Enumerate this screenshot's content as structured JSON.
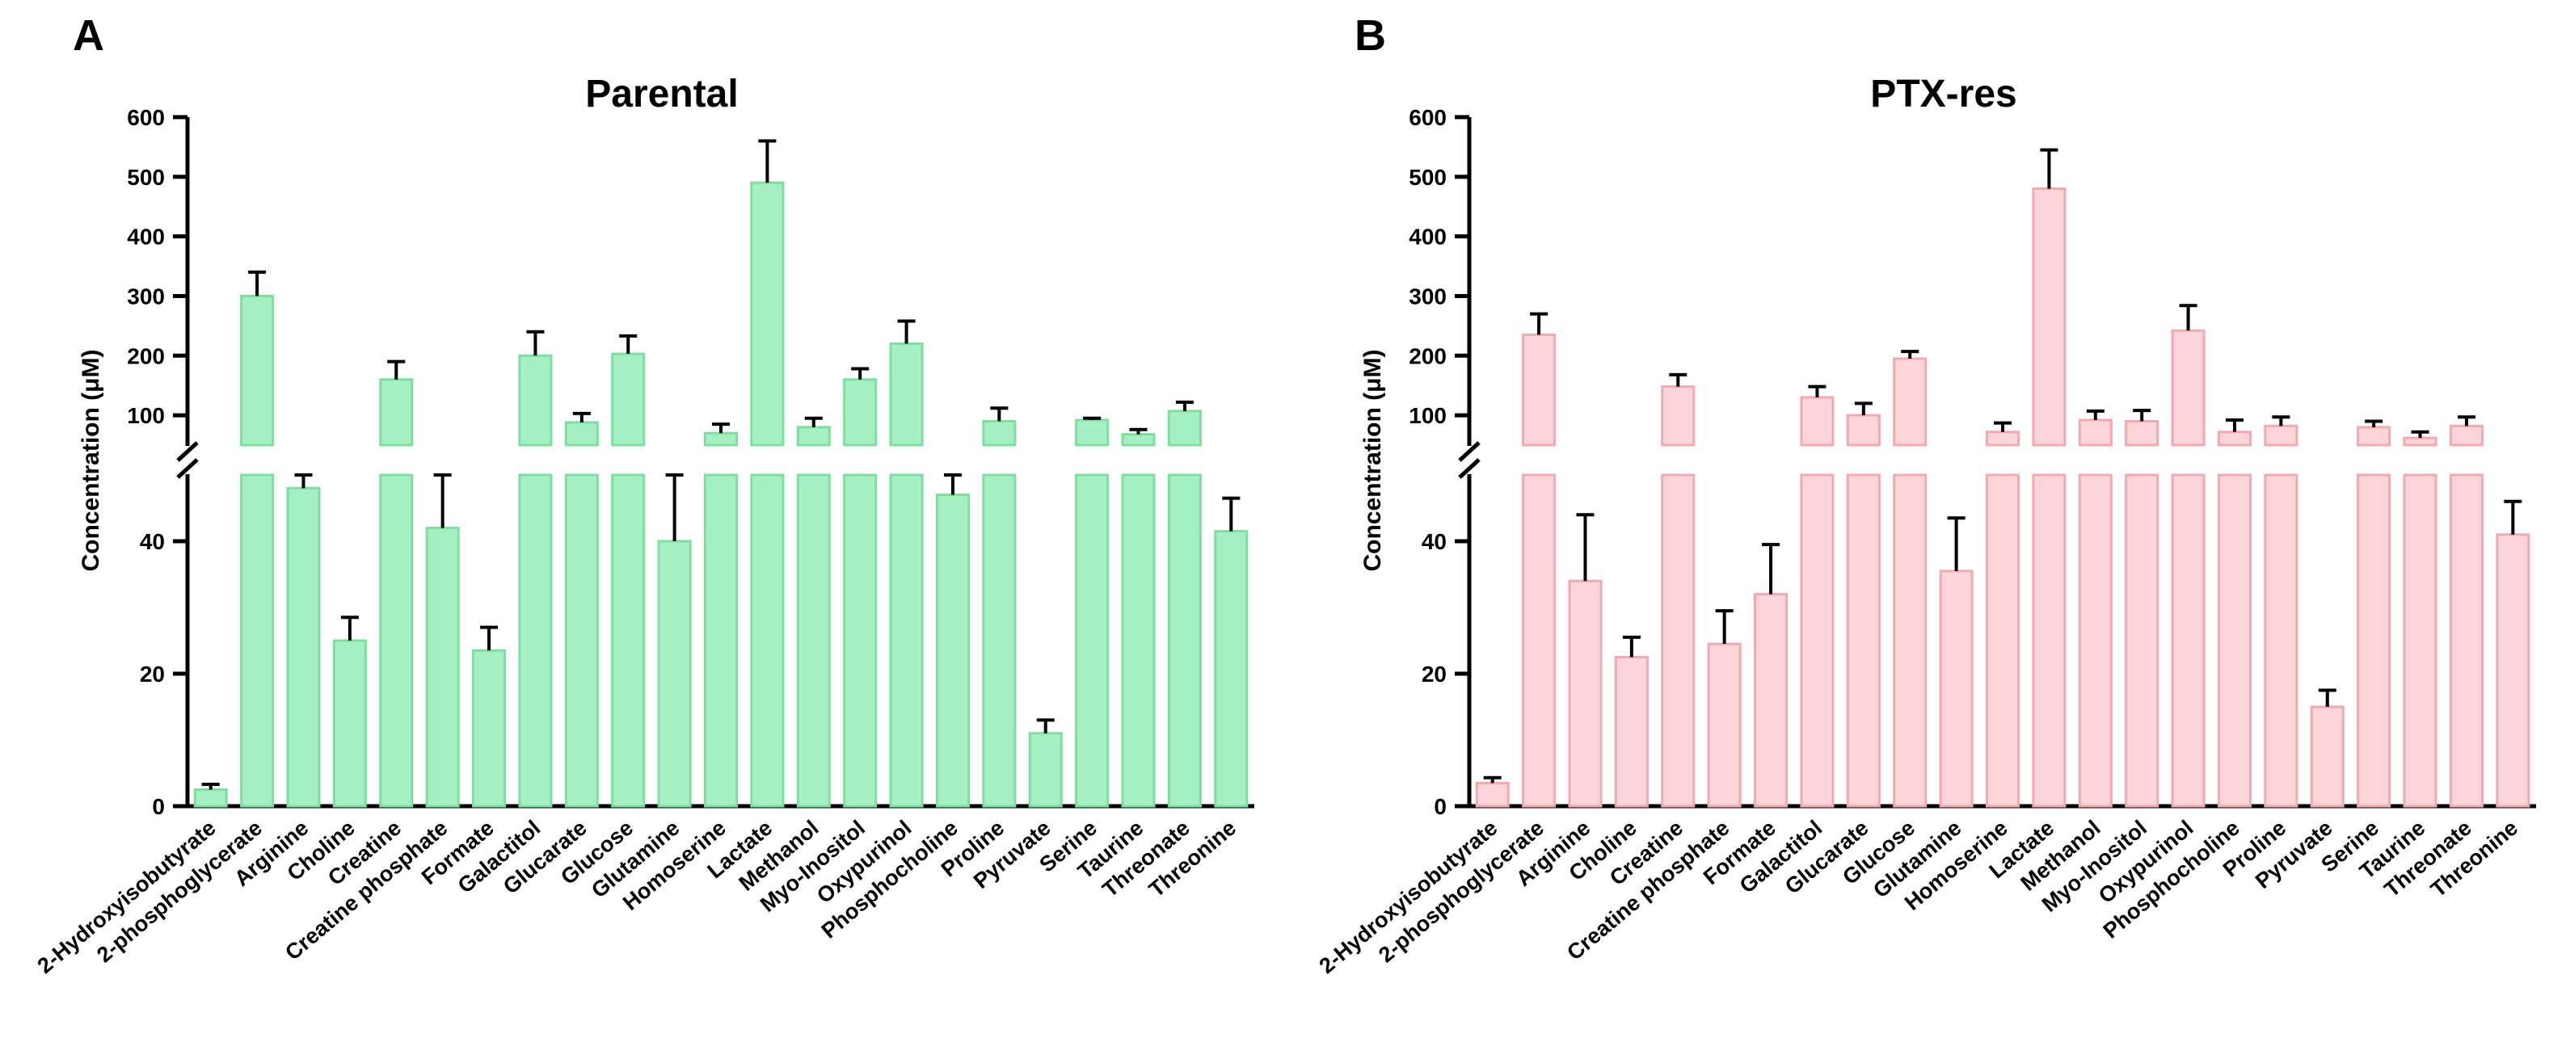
{
  "panels": [
    {
      "letter": "A"
    },
    {
      "letter": "B"
    }
  ],
  "chart_data": [
    {
      "type": "bar",
      "title": "Parental",
      "ylabel": "Concentration (μM)",
      "y_axis": "broken",
      "lower_ylim": [
        0,
        50
      ],
      "lower_ticks": [
        0,
        20,
        40
      ],
      "upper_ylim": [
        50,
        600
      ],
      "upper_ticks": [
        100,
        200,
        300,
        400,
        500,
        600
      ],
      "bar_color": "#a5f0c2",
      "bar_edge_color": "#7ddf9f",
      "categories": [
        "2-Hydroxyisobutyrate",
        "2-phosphoglycerate",
        "Arginine",
        "Choline",
        "Creatine",
        "Creatine phosphate",
        "Formate",
        "Galactitol",
        "Glucarate",
        "Glucose",
        "Glutamine",
        "Homoserine",
        "Lactate",
        "Methanol",
        "Myo-Inositol",
        "Oxypurinol",
        "Phosphocholine",
        "Proline",
        "Pyruvate",
        "Serine",
        "Taurine",
        "Threonate",
        "Threonine"
      ],
      "values": [
        2.5,
        300,
        48,
        25,
        160,
        42,
        23.5,
        200,
        88,
        203,
        40,
        70,
        490,
        80,
        160,
        220,
        47,
        90,
        11,
        92,
        68,
        107,
        41.5
      ],
      "errors": [
        0.8,
        40,
        8,
        3.5,
        30,
        8,
        3.5,
        40,
        15,
        30,
        10,
        15,
        70,
        15,
        18,
        38,
        8,
        22,
        2,
        3,
        8,
        15,
        5
      ]
    },
    {
      "type": "bar",
      "title": "PTX-res",
      "ylabel": "Concentration (μM)",
      "y_axis": "broken",
      "lower_ylim": [
        0,
        50
      ],
      "lower_ticks": [
        0,
        20,
        40
      ],
      "upper_ylim": [
        50,
        600
      ],
      "upper_ticks": [
        100,
        200,
        300,
        400,
        500,
        600
      ],
      "bar_color": "#fcd5d8",
      "bar_edge_color": "#f2a9b0",
      "categories": [
        "2-Hydroxyisobutyrate",
        "2-phosphoglycerate",
        "Arginine",
        "Choline",
        "Creatine",
        "Creatine phosphate",
        "Formate",
        "Galactitol",
        "Glucarate",
        "Glucose",
        "Glutamine",
        "Homoserine",
        "Lactate",
        "Methanol",
        "Myo-Inositol",
        "Oxypurinol",
        "Phosphocholine",
        "Proline",
        "Pyruvate",
        "Serine",
        "Taurine",
        "Threonate",
        "Threonine"
      ],
      "values": [
        3.5,
        235,
        34,
        22.5,
        148,
        24.5,
        32,
        130,
        100,
        195,
        35.5,
        72,
        480,
        92,
        90,
        242,
        72,
        82,
        15,
        80,
        62,
        82,
        41
      ],
      "errors": [
        0.8,
        35,
        10,
        3,
        20,
        5,
        7.5,
        18,
        20,
        12,
        8,
        15,
        65,
        15,
        18,
        42,
        20,
        15,
        2.5,
        10,
        10,
        15,
        5
      ]
    }
  ]
}
